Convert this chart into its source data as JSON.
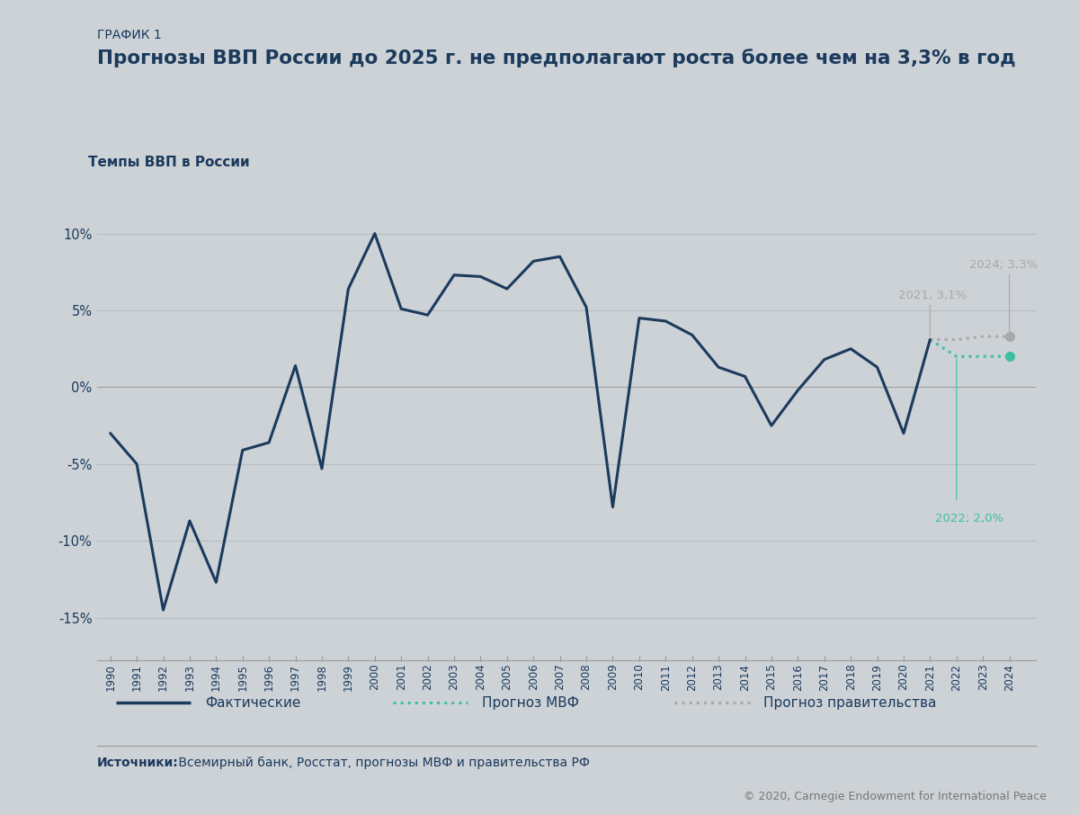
{
  "background_color": "#cdd2d7",
  "plot_bg_color": "#cdd2d7",
  "title_label": "ГРАФИК 1",
  "title_main": "Прогнозы ВВП России до 2025 г. не предполагают роста более чем на 3,3% в год",
  "chart_subtitle": "Темпы ВВП в России",
  "source_text_bold": "Источники:",
  "source_text_normal": " Всемирный банк, Росстат, прогнозы МВФ и правительства РФ",
  "copyright_text": "© 2020, Carnegie Endowment for International Peace",
  "actual_years": [
    1990,
    1991,
    1992,
    1993,
    1994,
    1995,
    1996,
    1997,
    1998,
    1999,
    2000,
    2001,
    2002,
    2003,
    2004,
    2005,
    2006,
    2007,
    2008,
    2009,
    2010,
    2011,
    2012,
    2013,
    2014,
    2015,
    2016,
    2017,
    2018,
    2019,
    2020,
    2021
  ],
  "actual_values": [
    -3.0,
    -5.0,
    -14.5,
    -8.7,
    -12.7,
    -4.1,
    -3.6,
    1.4,
    -5.3,
    6.4,
    10.0,
    5.1,
    4.7,
    7.3,
    7.2,
    6.4,
    8.2,
    8.5,
    5.2,
    -7.8,
    4.5,
    4.3,
    3.4,
    1.3,
    0.7,
    -2.5,
    -0.2,
    1.8,
    2.5,
    1.3,
    -3.0,
    3.1
  ],
  "imf_years": [
    2021,
    2022,
    2023,
    2024
  ],
  "imf_values": [
    3.1,
    2.0,
    2.0,
    2.0
  ],
  "gov_years": [
    2021,
    2022,
    2023,
    2024
  ],
  "gov_values": [
    3.1,
    3.1,
    3.3,
    3.3
  ],
  "actual_color": "#1b3a5c",
  "imf_color": "#3dbfa0",
  "gov_color": "#a8a8a8",
  "grid_color": "#b8bdc2",
  "tick_color": "#1b3a5c",
  "ylabel_ticks": [
    -15,
    -10,
    -5,
    0,
    5,
    10
  ],
  "ylabel_labels": [
    "-15%",
    "-10%",
    "-5%",
    "0%",
    "5%",
    "10%"
  ],
  "xlim": [
    1989.5,
    2025.0
  ],
  "ylim": [
    -17.5,
    13.0
  ],
  "legend_actual": "Фактические",
  "legend_imf": "Прогноз МВФ",
  "legend_gov": "Прогноз правительства"
}
